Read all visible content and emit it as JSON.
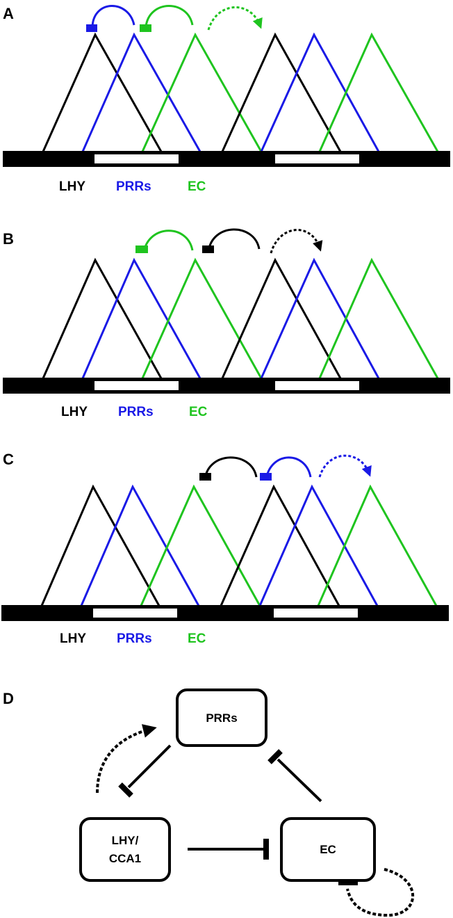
{
  "colors": {
    "lhy": "#000000",
    "prrs": "#1a1ae6",
    "ec": "#1fc41f",
    "dark": "#000000"
  },
  "panels": [
    {
      "label": "A",
      "legend": {
        "lhy": "LHY",
        "prrs": "PRRs",
        "ec": "EC"
      },
      "arrows": [
        {
          "name": "prrs-repression-arc",
          "color": "prrs",
          "style": "solid"
        },
        {
          "name": "ec-repression-arc",
          "color": "ec",
          "style": "solid"
        },
        {
          "name": "ec-dotted-arrow",
          "color": "ec",
          "style": "dotted"
        }
      ]
    },
    {
      "label": "B",
      "legend": {
        "lhy": "LHY",
        "prrs": "PRRs",
        "ec": "EC"
      },
      "arrows": [
        {
          "name": "ec-repression-arc",
          "color": "ec",
          "style": "solid"
        },
        {
          "name": "lhy-repression-arc",
          "color": "lhy",
          "style": "solid"
        },
        {
          "name": "lhy-dotted-arrow",
          "color": "lhy",
          "style": "dotted"
        }
      ]
    },
    {
      "label": "C",
      "legend": {
        "lhy": "LHY",
        "prrs": "PRRs",
        "ec": "EC"
      },
      "arrows": [
        {
          "name": "lhy-repression-arc",
          "color": "lhy",
          "style": "solid"
        },
        {
          "name": "prrs-repression-arc",
          "color": "prrs",
          "style": "solid"
        },
        {
          "name": "prrs-dotted-arrow",
          "color": "prrs",
          "style": "dotted"
        }
      ]
    }
  ],
  "network": {
    "label": "D",
    "nodes": {
      "prrs": "PRRs",
      "lhy_line1": "LHY/",
      "lhy_line2": "CCA1",
      "ec": "EC"
    }
  }
}
